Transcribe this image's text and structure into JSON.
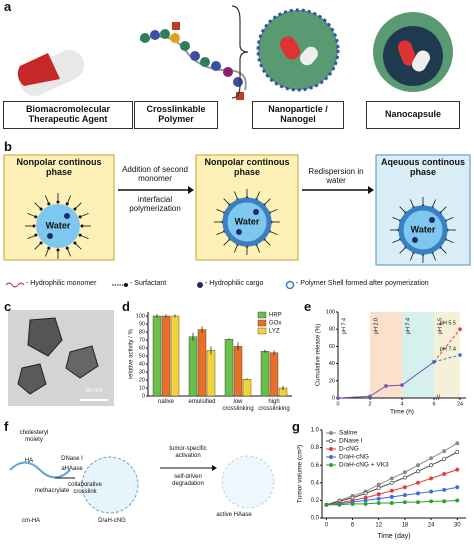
{
  "panel_labels": [
    "a",
    "b",
    "c",
    "d",
    "e",
    "f",
    "g"
  ],
  "panel_a": {
    "labels": [
      "Biomacromolecular Therapeutic Agent",
      "Crosslinkable Polymer",
      "Nanoparticle / Nanogel",
      "Nanocapsule"
    ]
  },
  "panel_b": {
    "boxes": [
      {
        "title": "Nonpolar continous phase",
        "core": "Water"
      },
      {
        "title": "Nonpolar continous phase",
        "core": "Water"
      },
      {
        "title": "Aqeuous continous phase",
        "core": "Water"
      }
    ],
    "step1_top": "Addition of second monomer",
    "step1_bottom": "interfacial polymerization",
    "step2": "Redispersion in water",
    "legend": [
      "- Hydrophilic monomer",
      "- Surfactant",
      "- Hydrophilic cargo",
      "- Polymer Shell formed after poymerization"
    ]
  },
  "panel_c": {
    "scale_bar": "50 nm"
  },
  "panel_f": {
    "labels": [
      "cholesteryl moiety",
      "HA",
      "methacrylate",
      "cm-HA",
      "DNase I",
      "aHAase",
      "collaborative crosslink",
      "D/aH-cNG",
      "tumor-specific activation",
      "self-driven degradation",
      "active HAase"
    ]
  },
  "chart_data": [
    {
      "type": "bar",
      "y_label": "relative activity / %",
      "categories": [
        "native",
        "emulsified",
        "low crosslinking",
        "high crosslinking"
      ],
      "series": [
        {
          "name": "HRP",
          "color": "#6abf4b",
          "values": [
            100,
            74,
            71,
            56
          ],
          "errors": [
            2,
            5,
            1,
            2
          ]
        },
        {
          "name": "GOx",
          "color": "#e8702a",
          "values": [
            100,
            83,
            62,
            54
          ],
          "errors": [
            2,
            4,
            5,
            3
          ]
        },
        {
          "name": "LYZ",
          "color": "#f2d33c",
          "values": [
            100,
            57,
            21,
            10
          ],
          "errors": [
            2,
            5,
            1,
            3
          ]
        }
      ],
      "ylim": [
        0,
        105
      ],
      "yticks": [
        0,
        10,
        20,
        30,
        40,
        50,
        60,
        70,
        80,
        90,
        100
      ],
      "legend": "top-right"
    },
    {
      "type": "line",
      "x_label": "Time (h)",
      "y_label": "Cumulative release (%)",
      "regions": [
        {
          "label": "pH 7.4",
          "from": 0,
          "to": 2,
          "fill": "#ffffff",
          "color": "#3b6fd6"
        },
        {
          "label": "pH 2.0",
          "from": 2,
          "to": 4,
          "fill": "#fbe0cc",
          "color": "#d9534f"
        },
        {
          "label": "pH 7.4",
          "from": 4,
          "to": 6,
          "fill": "#d6f0ee",
          "color": "#3b6fd6"
        },
        {
          "label": "pH 5.5",
          "from": 6,
          "to": 24,
          "fill": "#f4f1d8",
          "color": "#d9534f"
        }
      ],
      "series": [
        {
          "color": "#7a4fb5",
          "dash": false,
          "x": [
            0,
            2,
            3,
            4,
            6
          ],
          "values": [
            0,
            2,
            14,
            15,
            42
          ]
        },
        {
          "name": "pH 5.5",
          "color": "#e04040",
          "dash": true,
          "x": [
            6,
            24
          ],
          "values": [
            42,
            80
          ]
        },
        {
          "name": "pH 7.4",
          "color": "#3b6fd6",
          "dash": true,
          "x": [
            6,
            24
          ],
          "values": [
            42,
            50
          ]
        }
      ],
      "xlim": [
        0,
        24
      ],
      "xticks": [
        0,
        2,
        4,
        6,
        24
      ],
      "ylim": [
        0,
        100
      ],
      "yticks": [
        0,
        20,
        40,
        60,
        80,
        100
      ]
    },
    {
      "type": "line",
      "x_label": "Time (day)",
      "y_label": "Tumor volume (cm³)",
      "x": [
        0,
        3,
        6,
        9,
        12,
        15,
        18,
        21,
        24,
        27,
        30
      ],
      "series": [
        {
          "name": "Saline",
          "color": "#8a8a8a",
          "values": [
            0.15,
            0.2,
            0.25,
            0.3,
            0.38,
            0.45,
            0.52,
            0.6,
            0.68,
            0.76,
            0.85
          ]
        },
        {
          "name": "DNase I",
          "color": "#4d4d4d",
          "values": [
            0.15,
            0.19,
            0.23,
            0.28,
            0.34,
            0.4,
            0.46,
            0.53,
            0.6,
            0.67,
            0.75
          ]
        },
        {
          "name": "D-cNG",
          "color": "#e03c3c",
          "values": [
            0.15,
            0.17,
            0.2,
            0.23,
            0.27,
            0.31,
            0.35,
            0.4,
            0.45,
            0.5,
            0.55
          ]
        },
        {
          "name": "D/aH-cNG",
          "color": "#3c6de0",
          "values": [
            0.15,
            0.16,
            0.18,
            0.2,
            0.22,
            0.24,
            0.26,
            0.28,
            0.3,
            0.32,
            0.35
          ]
        },
        {
          "name": "D/aH-cNG + VK3",
          "color": "#2ca02c",
          "values": [
            0.15,
            0.15,
            0.16,
            0.16,
            0.17,
            0.17,
            0.18,
            0.18,
            0.19,
            0.19,
            0.2
          ]
        }
      ],
      "xlim": [
        -1,
        32
      ],
      "xticks": [
        0,
        6,
        12,
        18,
        24,
        30
      ],
      "ylim": [
        0,
        1
      ],
      "yticks": [
        {
          "value": 0,
          "label": "0.0"
        },
        0.2,
        0.4,
        0.6,
        0.8,
        {
          "value": 1,
          "label": "1.0"
        }
      ],
      "legend": "top-left"
    }
  ]
}
